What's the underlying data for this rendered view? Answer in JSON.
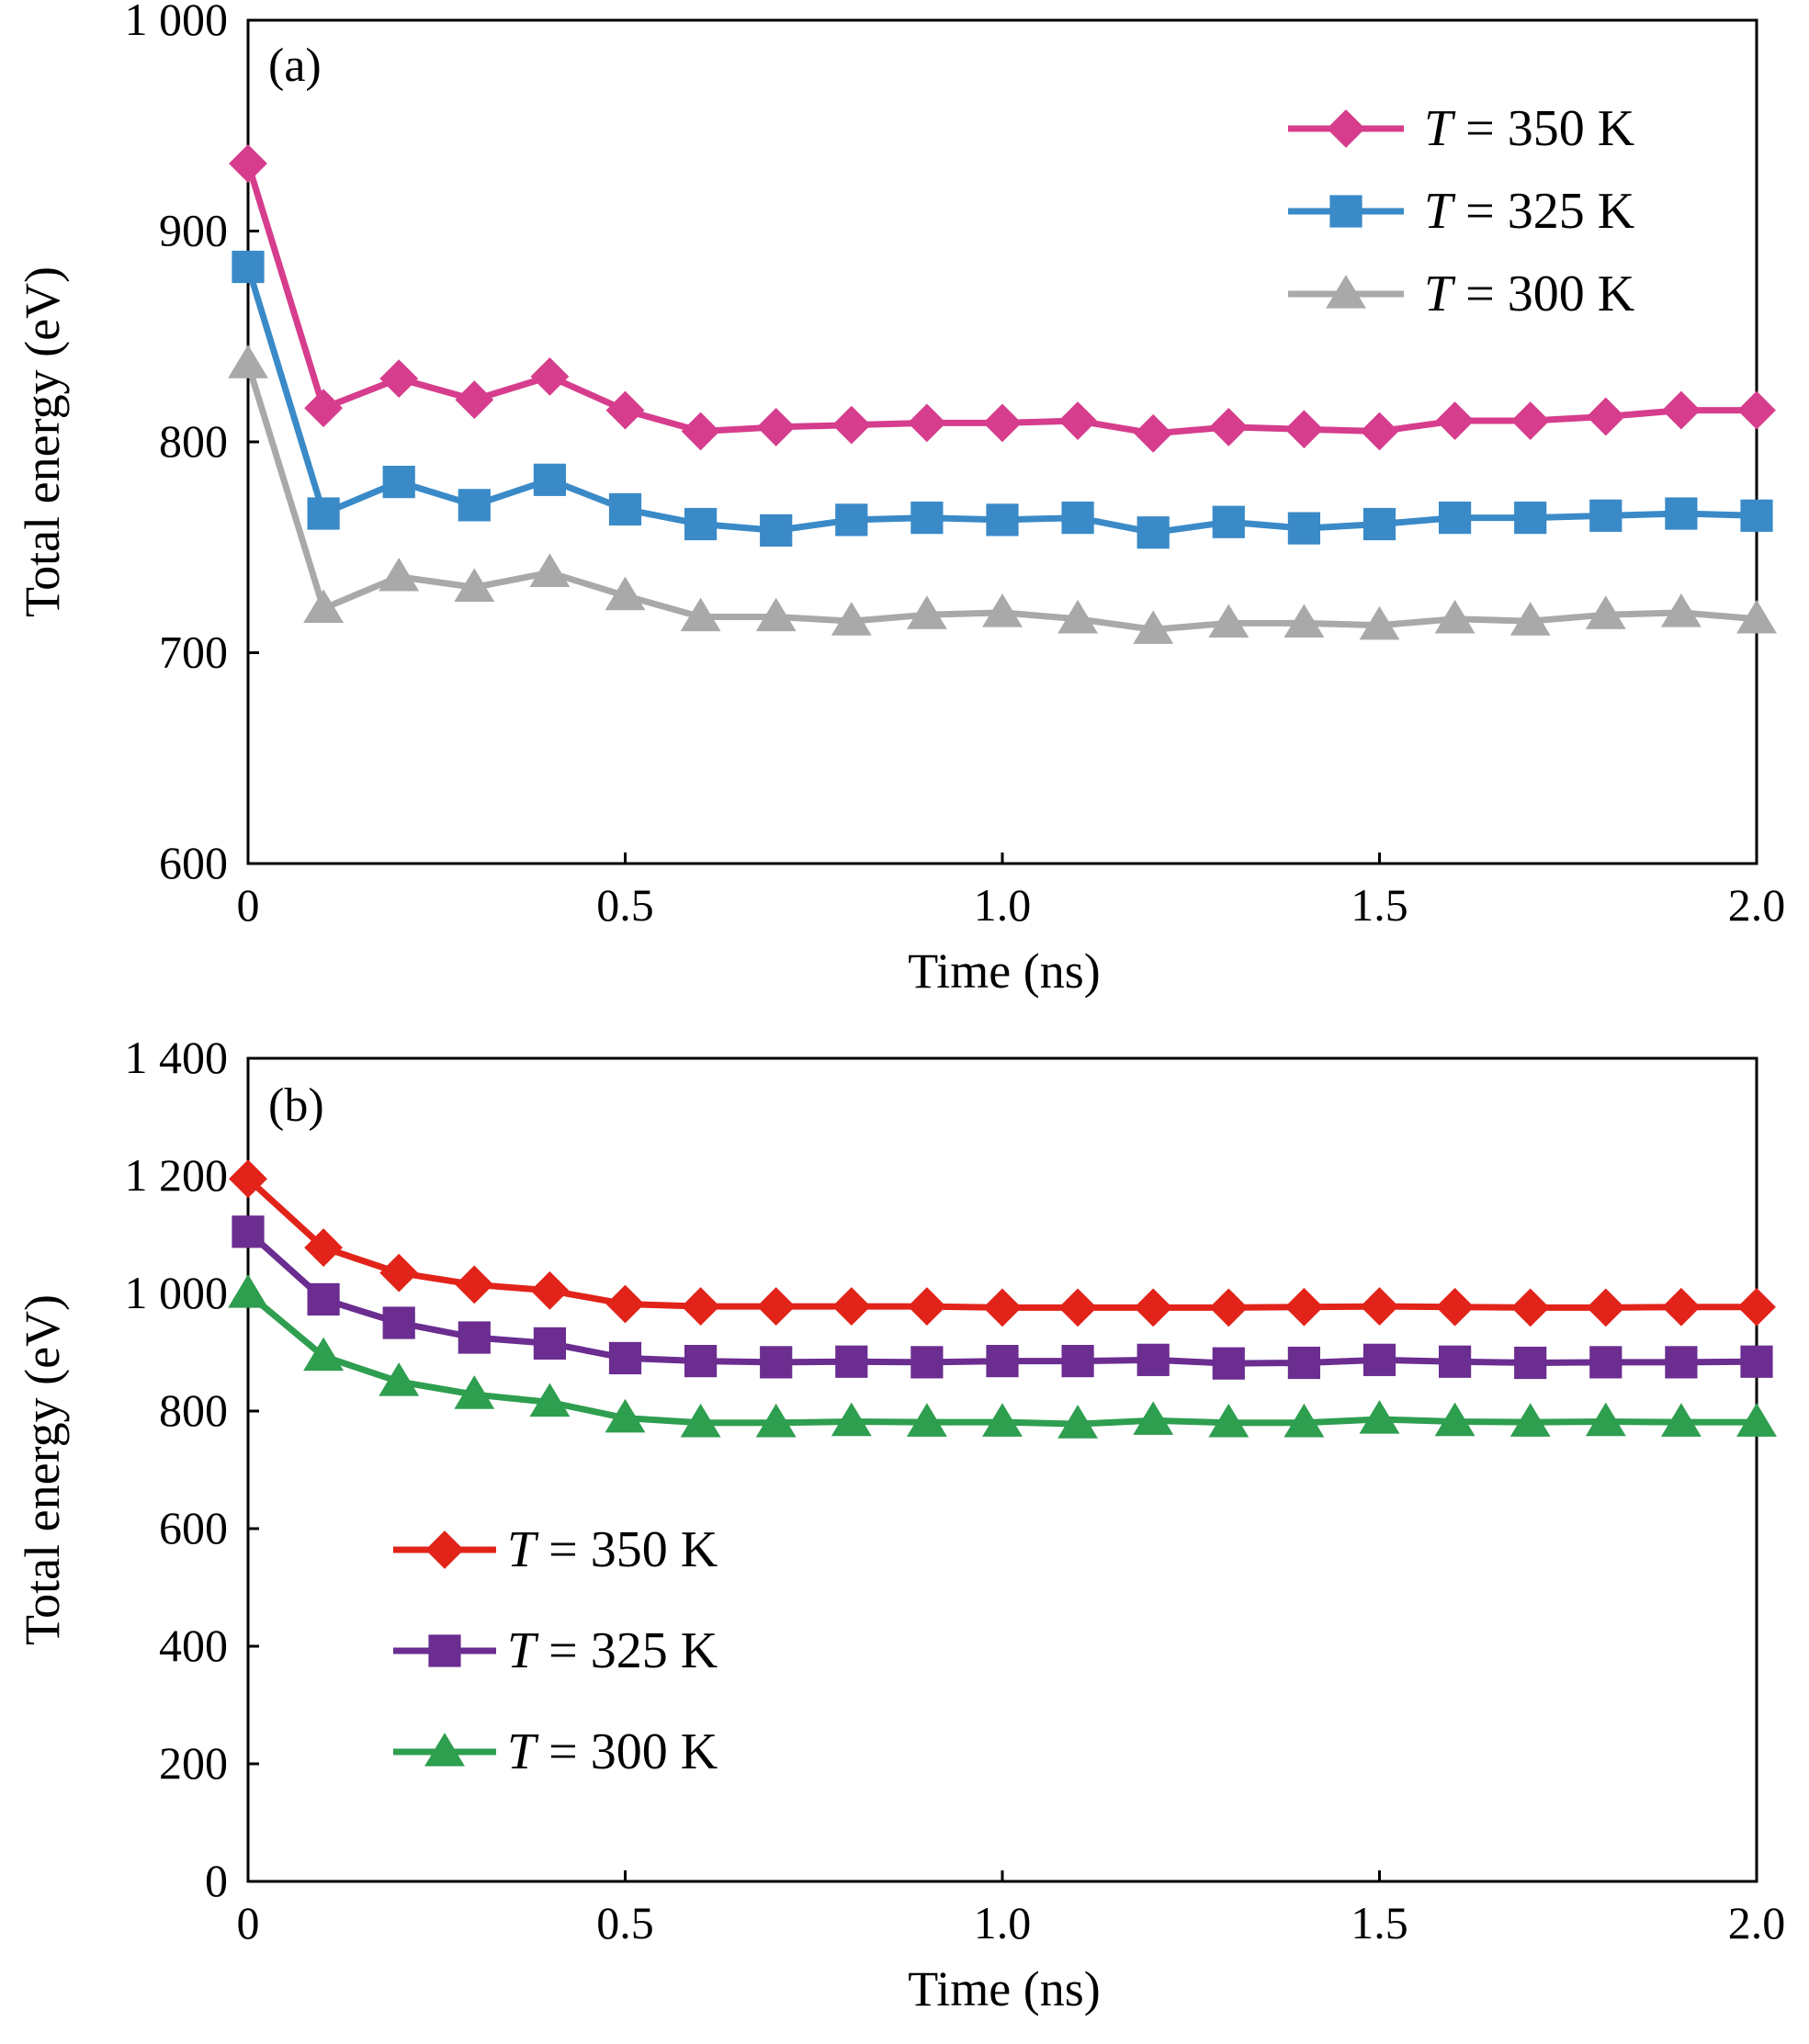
{
  "chart_data": [
    {
      "type": "line",
      "panel_label": "(a)",
      "xlabel": "Time (ns)",
      "ylabel": "Total energy (eV)",
      "xlim": [
        0,
        2.0
      ],
      "ylim": [
        600,
        1000
      ],
      "x_ticks": [
        {
          "value": 0,
          "label": "0"
        },
        {
          "value": 0.5,
          "label": "0.5"
        },
        {
          "value": 1.0,
          "label": "1.0"
        },
        {
          "value": 1.5,
          "label": "1.5"
        },
        {
          "value": 2.0,
          "label": "2.0"
        }
      ],
      "y_ticks": [
        {
          "value": 600,
          "label": "600"
        },
        {
          "value": 700,
          "label": "700"
        },
        {
          "value": 800,
          "label": "800"
        },
        {
          "value": 900,
          "label": "900"
        },
        {
          "value": 1000,
          "label": "1 000"
        }
      ],
      "legend_position": "top-right",
      "grid": false,
      "x": [
        0,
        0.1,
        0.2,
        0.3,
        0.4,
        0.5,
        0.6,
        0.7,
        0.8,
        0.9,
        1.0,
        1.1,
        1.2,
        1.3,
        1.4,
        1.5,
        1.6,
        1.7,
        1.8,
        1.9,
        2.0
      ],
      "series": [
        {
          "name": "T = 350 K",
          "name_italic": "T",
          "name_rest": " = 350 K",
          "marker": "diamond",
          "color": "#d63d8c",
          "values": [
            932,
            816,
            830,
            820,
            831,
            815,
            805,
            807,
            808,
            809,
            809,
            810,
            804,
            807,
            806,
            805,
            810,
            810,
            812,
            815,
            815
          ]
        },
        {
          "name": "T = 325 K",
          "name_italic": "T",
          "name_rest": " = 325 K",
          "marker": "square",
          "color": "#3a8ac8",
          "values": [
            883,
            766,
            781,
            770,
            782,
            768,
            761,
            758,
            763,
            764,
            763,
            764,
            757,
            762,
            759,
            761,
            764,
            764,
            765,
            766,
            765
          ]
        },
        {
          "name": "T = 300 K",
          "name_italic": "T",
          "name_rest": " = 300 K",
          "marker": "triangle",
          "color": "#a9a9a9",
          "values": [
            837,
            721,
            736,
            731,
            738,
            727,
            717,
            717,
            715,
            718,
            719,
            716,
            711,
            714,
            714,
            713,
            716,
            715,
            718,
            719,
            716
          ]
        }
      ]
    },
    {
      "type": "line",
      "panel_label": "(b)",
      "xlabel": "Time (ns)",
      "ylabel": "Total energy (eV)",
      "xlim": [
        0,
        2.0
      ],
      "ylim": [
        0,
        1400
      ],
      "x_ticks": [
        {
          "value": 0,
          "label": "0"
        },
        {
          "value": 0.5,
          "label": "0.5"
        },
        {
          "value": 1.0,
          "label": "1.0"
        },
        {
          "value": 1.5,
          "label": "1.5"
        },
        {
          "value": 2.0,
          "label": "2.0"
        }
      ],
      "y_ticks": [
        {
          "value": 0,
          "label": "0"
        },
        {
          "value": 200,
          "label": "200"
        },
        {
          "value": 400,
          "label": "400"
        },
        {
          "value": 600,
          "label": "600"
        },
        {
          "value": 800,
          "label": "800"
        },
        {
          "value": 1000,
          "label": "1 000"
        },
        {
          "value": 1200,
          "label": "1 200"
        },
        {
          "value": 1400,
          "label": "1 400"
        }
      ],
      "legend_position": "lower-left",
      "grid": false,
      "x": [
        0,
        0.1,
        0.2,
        0.3,
        0.4,
        0.5,
        0.6,
        0.7,
        0.8,
        0.9,
        1.0,
        1.1,
        1.2,
        1.3,
        1.4,
        1.5,
        1.6,
        1.7,
        1.8,
        1.9,
        2.0
      ],
      "series": [
        {
          "name": "T = 350 K",
          "name_italic": "T",
          "name_rest": " = 350 K",
          "marker": "diamond",
          "color": "#e2231a",
          "values": [
            1195,
            1078,
            1035,
            1015,
            1005,
            982,
            978,
            978,
            978,
            978,
            976,
            976,
            976,
            976,
            977,
            978,
            977,
            976,
            976,
            977,
            977
          ]
        },
        {
          "name": "T = 325 K",
          "name_italic": "T",
          "name_rest": " = 325 K",
          "marker": "square",
          "color": "#6b2d90",
          "values": [
            1105,
            990,
            950,
            925,
            915,
            890,
            885,
            883,
            884,
            883,
            885,
            885,
            887,
            881,
            882,
            887,
            884,
            882,
            883,
            883,
            884
          ]
        },
        {
          "name": "T = 300 K",
          "name_italic": "T",
          "name_rest": " = 300 K",
          "marker": "triangle",
          "color": "#2e9e4f",
          "values": [
            1000,
            893,
            850,
            828,
            815,
            788,
            780,
            780,
            782,
            781,
            781,
            778,
            784,
            780,
            780,
            786,
            782,
            781,
            782,
            781,
            781
          ]
        }
      ]
    }
  ]
}
